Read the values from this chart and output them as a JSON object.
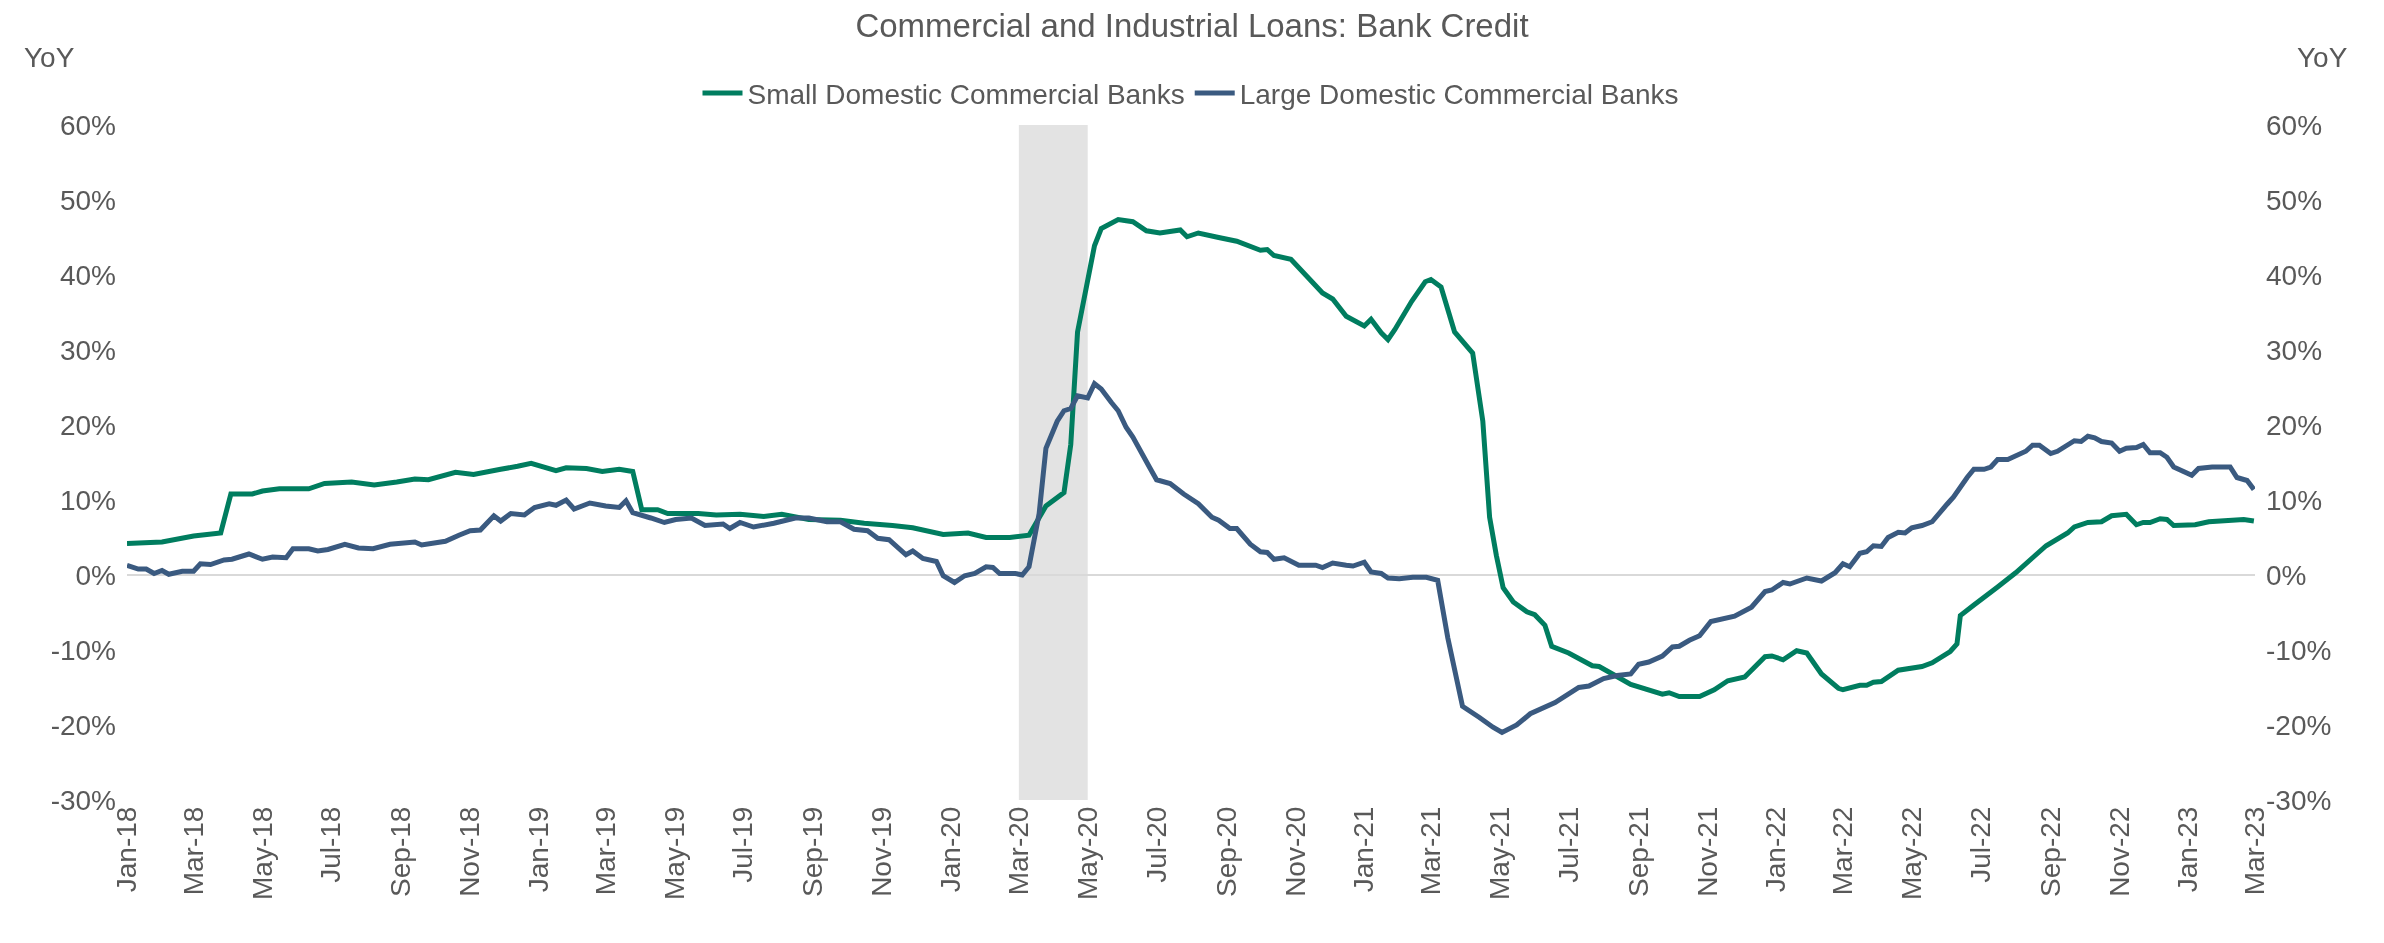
{
  "chart_data": {
    "type": "line",
    "title": "Commercial and Industrial Loans: Bank Credit",
    "ylabel": "YoY",
    "y2label": "YoY",
    "legend": "top",
    "grid": false,
    "marker": "none",
    "line_style": "solid",
    "xlim": [
      "2018-01-01",
      "2023-03-01"
    ],
    "xticks": [
      {
        "value": "2018-01-01",
        "label": "Jan-18"
      },
      {
        "value": "2018-03-01",
        "label": "Mar-18"
      },
      {
        "value": "2018-05-01",
        "label": "May-18"
      },
      {
        "value": "2018-07-01",
        "label": "Jul-18"
      },
      {
        "value": "2018-09-01",
        "label": "Sep-18"
      },
      {
        "value": "2018-11-01",
        "label": "Nov-18"
      },
      {
        "value": "2019-01-01",
        "label": "Jan-19"
      },
      {
        "value": "2019-03-01",
        "label": "Mar-19"
      },
      {
        "value": "2019-05-01",
        "label": "May-19"
      },
      {
        "value": "2019-07-01",
        "label": "Jul-19"
      },
      {
        "value": "2019-09-01",
        "label": "Sep-19"
      },
      {
        "value": "2019-11-01",
        "label": "Nov-19"
      },
      {
        "value": "2020-01-01",
        "label": "Jan-20"
      },
      {
        "value": "2020-03-01",
        "label": "Mar-20"
      },
      {
        "value": "2020-05-01",
        "label": "May-20"
      },
      {
        "value": "2020-07-01",
        "label": "Jul-20"
      },
      {
        "value": "2020-09-01",
        "label": "Sep-20"
      },
      {
        "value": "2020-11-01",
        "label": "Nov-20"
      },
      {
        "value": "2021-01-01",
        "label": "Jan-21"
      },
      {
        "value": "2021-03-01",
        "label": "Mar-21"
      },
      {
        "value": "2021-05-01",
        "label": "May-21"
      },
      {
        "value": "2021-07-01",
        "label": "Jul-21"
      },
      {
        "value": "2021-09-01",
        "label": "Sep-21"
      },
      {
        "value": "2021-11-01",
        "label": "Nov-21"
      },
      {
        "value": "2022-01-01",
        "label": "Jan-22"
      },
      {
        "value": "2022-03-01",
        "label": "Mar-22"
      },
      {
        "value": "2022-05-01",
        "label": "May-22"
      },
      {
        "value": "2022-07-01",
        "label": "Jul-22"
      },
      {
        "value": "2022-09-01",
        "label": "Sep-22"
      },
      {
        "value": "2022-11-01",
        "label": "Nov-22"
      },
      {
        "value": "2023-01-01",
        "label": "Jan-23"
      },
      {
        "value": "2023-03-01",
        "label": "Mar-23"
      }
    ],
    "ylim": [
      -30,
      60
    ],
    "yticks": [
      {
        "value": -30,
        "label": "-30%"
      },
      {
        "value": -20,
        "label": "-20%"
      },
      {
        "value": -10,
        "label": "-10%"
      },
      {
        "value": 0,
        "label": "0%"
      },
      {
        "value": 10,
        "label": "10%"
      },
      {
        "value": 20,
        "label": "20%"
      },
      {
        "value": 30,
        "label": "30%"
      },
      {
        "value": 40,
        "label": "40%"
      },
      {
        "value": 50,
        "label": "50%"
      },
      {
        "value": 60,
        "label": "60%"
      }
    ],
    "y2lim": [
      -30,
      60
    ],
    "y2ticks": [
      {
        "value": -30,
        "label": "-30%"
      },
      {
        "value": -20,
        "label": "-20%"
      },
      {
        "value": -10,
        "label": "-10%"
      },
      {
        "value": 0,
        "label": "0%"
      },
      {
        "value": 10,
        "label": "10%"
      },
      {
        "value": 20,
        "label": "20%"
      },
      {
        "value": 30,
        "label": "30%"
      },
      {
        "value": 40,
        "label": "40%"
      },
      {
        "value": 50,
        "label": "50%"
      },
      {
        "value": 60,
        "label": "60%"
      }
    ],
    "ref_lines": [
      {
        "axis": "y",
        "value": 0,
        "color": "#d9d9d9"
      }
    ],
    "bands": [
      {
        "axis": "x",
        "from": "2020-03-01",
        "to": "2020-05-01",
        "color": "#e3e3e3"
      }
    ],
    "series": [
      {
        "name": "Small Domestic Commercial Banks",
        "color": "#007d5f",
        "x": [
          "2018-01-01",
          "2018-02-01",
          "2018-03-01",
          "2018-03-25",
          "2018-04-03",
          "2018-04-22",
          "2018-05-01",
          "2018-05-16",
          "2018-06-11",
          "2018-06-25",
          "2018-07-19",
          "2018-08-08",
          "2018-08-28",
          "2018-09-13",
          "2018-09-25",
          "2018-10-19",
          "2018-11-04",
          "2018-11-28",
          "2018-12-13",
          "2018-12-25",
          "2019-01-16",
          "2019-01-25",
          "2019-02-12",
          "2019-02-26",
          "2019-03-13",
          "2019-03-25",
          "2019-04-02",
          "2019-04-16",
          "2019-04-25",
          "2019-05-22",
          "2019-06-07",
          "2019-06-28",
          "2019-07-19",
          "2019-08-04",
          "2019-08-28",
          "2019-09-25",
          "2019-10-16",
          "2019-11-10",
          "2019-11-28",
          "2019-12-25",
          "2020-01-16",
          "2020-02-01",
          "2020-02-22",
          "2020-03-10",
          "2020-03-25",
          "2020-04-10",
          "2020-04-16",
          "2020-04-22",
          "2020-05-07",
          "2020-05-13",
          "2020-05-28",
          "2020-06-10",
          "2020-06-22",
          "2020-07-04",
          "2020-07-22",
          "2020-07-28",
          "2020-08-07",
          "2020-08-25",
          "2020-09-10",
          "2020-10-01",
          "2020-10-07",
          "2020-10-13",
          "2020-10-28",
          "2020-11-25",
          "2020-12-04",
          "2020-12-16",
          "2021-01-01",
          "2021-01-07",
          "2021-01-16",
          "2021-01-22",
          "2021-01-28",
          "2021-02-12",
          "2021-02-24",
          "2021-03-01",
          "2021-03-10",
          "2021-03-22",
          "2021-04-07",
          "2021-04-16",
          "2021-04-22",
          "2021-04-28",
          "2021-05-04",
          "2021-05-13",
          "2021-05-25",
          "2021-06-01",
          "2021-06-10",
          "2021-06-16",
          "2021-07-01",
          "2021-07-22",
          "2021-07-28",
          "2021-08-10",
          "2021-08-25",
          "2021-09-22",
          "2021-09-28",
          "2021-10-07",
          "2021-10-25",
          "2021-11-07",
          "2021-11-19",
          "2021-12-04",
          "2021-12-22",
          "2021-12-28",
          "2022-01-07",
          "2022-01-19",
          "2022-01-28",
          "2022-02-10",
          "2022-02-25",
          "2022-03-01",
          "2022-03-16",
          "2022-03-22",
          "2022-03-28",
          "2022-04-04",
          "2022-04-19",
          "2022-05-10",
          "2022-05-19",
          "2022-06-04",
          "2022-06-10",
          "2022-06-13",
          "2022-06-25",
          "2022-07-16",
          "2022-08-01",
          "2022-08-28",
          "2022-09-16",
          "2022-09-22",
          "2022-10-04",
          "2022-10-16",
          "2022-10-25",
          "2022-11-07",
          "2022-11-16",
          "2022-11-22",
          "2022-11-28",
          "2022-12-07",
          "2022-12-13",
          "2022-12-19",
          "2023-01-07",
          "2023-01-19",
          "2023-02-19",
          "2023-02-28"
        ],
        "values": [
          4.2,
          4.4,
          5.2,
          5.6,
          10.8,
          10.8,
          11.2,
          11.5,
          11.5,
          12.2,
          12.4,
          12.0,
          12.4,
          12.8,
          12.7,
          13.7,
          13.4,
          14.1,
          14.5,
          14.9,
          13.9,
          14.3,
          14.2,
          13.8,
          14.1,
          13.8,
          8.7,
          8.7,
          8.2,
          8.2,
          8.0,
          8.1,
          7.8,
          8.1,
          7.4,
          7.3,
          6.9,
          6.6,
          6.3,
          5.4,
          5.6,
          5.0,
          5.0,
          5.3,
          9.2,
          11.0,
          17.4,
          32.4,
          43.9,
          46.2,
          47.4,
          47.1,
          45.9,
          45.6,
          46.0,
          45.1,
          45.6,
          45.0,
          44.5,
          43.3,
          43.4,
          42.6,
          42.1,
          37.6,
          36.8,
          34.5,
          33.2,
          34.1,
          32.3,
          31.4,
          32.7,
          36.5,
          39.1,
          39.4,
          38.4,
          32.4,
          29.6,
          20.5,
          7.7,
          2.6,
          -1.7,
          -3.6,
          -4.9,
          -5.3,
          -6.7,
          -9.5,
          -10.4,
          -12.1,
          -12.2,
          -13.3,
          -14.6,
          -15.9,
          -15.7,
          -16.2,
          -16.2,
          -15.3,
          -14.1,
          -13.6,
          -10.9,
          -10.8,
          -11.3,
          -10.1,
          -10.4,
          -13.2,
          -15.1,
          -15.3,
          -14.7,
          -14.7,
          -14.3,
          -14.2,
          -12.7,
          -12.2,
          -11.7,
          -10.2,
          -9.2,
          -5.4,
          -4.0,
          -1.6,
          0.3,
          3.9,
          5.6,
          6.4,
          7.0,
          7.1,
          7.9,
          8.1,
          6.7,
          7.0,
          7.0,
          7.5,
          7.4,
          6.6,
          6.7,
          7.1,
          7.4,
          7.2
        ]
      },
      {
        "name": "Large Domestic Commercial Banks",
        "color": "#3a5a80",
        "x": [
          "2018-01-01",
          "2018-01-11",
          "2018-01-18",
          "2018-01-25",
          "2018-02-01",
          "2018-02-07",
          "2018-02-19",
          "2018-03-01",
          "2018-03-07",
          "2018-03-16",
          "2018-03-28",
          "2018-04-04",
          "2018-04-19",
          "2018-05-01",
          "2018-05-10",
          "2018-05-22",
          "2018-05-28",
          "2018-06-11",
          "2018-06-19",
          "2018-06-28",
          "2018-07-13",
          "2018-07-25",
          "2018-08-07",
          "2018-08-22",
          "2018-09-13",
          "2018-09-19",
          "2018-10-10",
          "2018-10-22",
          "2018-11-01",
          "2018-11-10",
          "2018-11-22",
          "2018-11-28",
          "2018-12-07",
          "2018-12-19",
          "2018-12-28",
          "2019-01-10",
          "2019-01-16",
          "2019-01-25",
          "2019-02-01",
          "2019-02-15",
          "2019-03-01",
          "2019-03-13",
          "2019-03-19",
          "2019-03-25",
          "2019-04-10",
          "2019-04-22",
          "2019-05-02",
          "2019-05-16",
          "2019-05-28",
          "2019-06-13",
          "2019-06-19",
          "2019-06-28",
          "2019-07-10",
          "2019-07-28",
          "2019-08-16",
          "2019-08-28",
          "2019-09-13",
          "2019-09-25",
          "2019-10-07",
          "2019-10-19",
          "2019-10-28",
          "2019-11-07",
          "2019-11-22",
          "2019-11-28",
          "2019-12-07",
          "2019-12-19",
          "2019-12-25",
          "2020-01-04",
          "2020-01-13",
          "2020-01-22",
          "2020-02-01",
          "2020-02-07",
          "2020-02-13",
          "2020-02-27",
          "2020-03-04",
          "2020-03-10",
          "2020-03-19",
          "2020-03-25",
          "2020-04-04",
          "2020-04-10",
          "2020-04-16",
          "2020-04-22",
          "2020-05-01",
          "2020-05-07",
          "2020-05-13",
          "2020-05-22",
          "2020-05-28",
          "2020-06-04",
          "2020-06-10",
          "2020-06-25",
          "2020-07-01",
          "2020-07-13",
          "2020-07-25",
          "2020-08-07",
          "2020-08-19",
          "2020-08-25",
          "2020-09-04",
          "2020-09-10",
          "2020-09-22",
          "2020-10-01",
          "2020-10-07",
          "2020-10-13",
          "2020-10-22",
          "2020-11-04",
          "2020-11-19",
          "2020-11-25",
          "2020-12-04",
          "2020-12-16",
          "2020-12-22",
          "2021-01-01",
          "2021-01-07",
          "2021-01-16",
          "2021-01-22",
          "2021-02-01",
          "2021-02-13",
          "2021-02-25",
          "2021-03-07",
          "2021-03-16",
          "2021-03-29",
          "2021-04-13",
          "2021-04-25",
          "2021-05-03",
          "2021-05-16",
          "2021-05-28",
          "2021-06-19",
          "2021-07-10",
          "2021-07-19",
          "2021-08-01",
          "2021-08-13",
          "2021-08-25",
          "2021-09-01",
          "2021-09-10",
          "2021-09-22",
          "2021-10-01",
          "2021-10-07",
          "2021-10-16",
          "2021-10-25",
          "2021-11-04",
          "2021-11-25",
          "2021-12-10",
          "2021-12-22",
          "2021-12-28",
          "2022-01-07",
          "2022-01-13",
          "2022-01-28",
          "2022-02-10",
          "2022-02-22",
          "2022-03-01",
          "2022-03-07",
          "2022-03-16",
          "2022-03-22",
          "2022-03-28",
          "2022-04-04",
          "2022-04-10",
          "2022-04-19",
          "2022-04-25",
          "2022-05-01",
          "2022-05-10",
          "2022-05-19",
          "2022-06-01",
          "2022-06-07",
          "2022-06-19",
          "2022-06-25",
          "2022-07-04",
          "2022-07-10",
          "2022-07-16",
          "2022-07-25",
          "2022-08-10",
          "2022-08-16",
          "2022-08-22",
          "2022-09-01",
          "2022-09-07",
          "2022-09-22",
          "2022-09-28",
          "2022-10-04",
          "2022-10-10",
          "2022-10-16",
          "2022-10-25",
          "2022-11-01",
          "2022-11-07",
          "2022-11-16",
          "2022-11-22",
          "2022-11-28",
          "2022-12-07",
          "2022-12-13",
          "2022-12-19",
          "2023-01-04",
          "2023-01-10",
          "2023-01-22",
          "2023-02-07",
          "2023-02-13",
          "2023-02-22",
          "2023-02-28"
        ],
        "values": [
          1.3,
          0.8,
          0.8,
          0.2,
          0.6,
          0.1,
          0.5,
          0.5,
          1.5,
          1.4,
          2.0,
          2.1,
          2.8,
          2.1,
          2.4,
          2.3,
          3.5,
          3.5,
          3.2,
          3.4,
          4.1,
          3.6,
          3.5,
          4.1,
          4.4,
          4.0,
          4.5,
          5.3,
          5.9,
          6.0,
          7.9,
          7.2,
          8.2,
          8.0,
          9.0,
          9.5,
          9.3,
          10.0,
          8.8,
          9.6,
          9.2,
          9.0,
          9.9,
          8.3,
          7.6,
          7.0,
          7.4,
          7.6,
          6.6,
          6.8,
          6.2,
          7.0,
          6.4,
          6.9,
          7.6,
          7.6,
          7.1,
          7.1,
          6.1,
          5.9,
          4.9,
          4.7,
          2.7,
          3.2,
          2.2,
          1.8,
          -0.1,
          -1.0,
          -0.1,
          0.2,
          1.1,
          1.0,
          0.2,
          0.2,
          0.0,
          1.1,
          8.2,
          16.9,
          20.5,
          21.9,
          22.2,
          23.9,
          23.6,
          25.5,
          24.8,
          23.0,
          21.9,
          19.7,
          18.4,
          14.3,
          12.7,
          12.2,
          10.8,
          9.5,
          7.7,
          7.3,
          6.2,
          6.2,
          4.1,
          3.1,
          3.0,
          2.1,
          2.3,
          1.3,
          1.3,
          1.0,
          1.6,
          1.3,
          1.2,
          1.7,
          0.4,
          0.2,
          -0.4,
          -0.5,
          -0.3,
          -0.3,
          -0.7,
          -8.4,
          -17.5,
          -19.0,
          -20.3,
          -21.0,
          -20.0,
          -18.5,
          -17.0,
          -15.0,
          -14.8,
          -13.8,
          -13.4,
          -13.2,
          -11.9,
          -11.6,
          -10.8,
          -9.6,
          -9.5,
          -8.7,
          -8.1,
          -6.2,
          -5.5,
          -4.3,
          -2.2,
          -2.0,
          -1.0,
          -1.2,
          -0.4,
          -0.8,
          0.3,
          1.5,
          1.1,
          2.9,
          3.1,
          3.9,
          3.8,
          5.0,
          5.7,
          5.6,
          6.3,
          6.6,
          7.1,
          9.4,
          10.4,
          13.0,
          14.1,
          14.1,
          14.4,
          15.4,
          15.4,
          16.5,
          17.3,
          17.3,
          16.2,
          16.5,
          17.9,
          17.8,
          18.5,
          18.3,
          17.8,
          17.6,
          16.5,
          16.9,
          17.0,
          17.4,
          16.3,
          16.3,
          15.7,
          14.4,
          13.3,
          14.2,
          14.4,
          14.4,
          13.0,
          12.6,
          11.4
        ]
      }
    ]
  }
}
